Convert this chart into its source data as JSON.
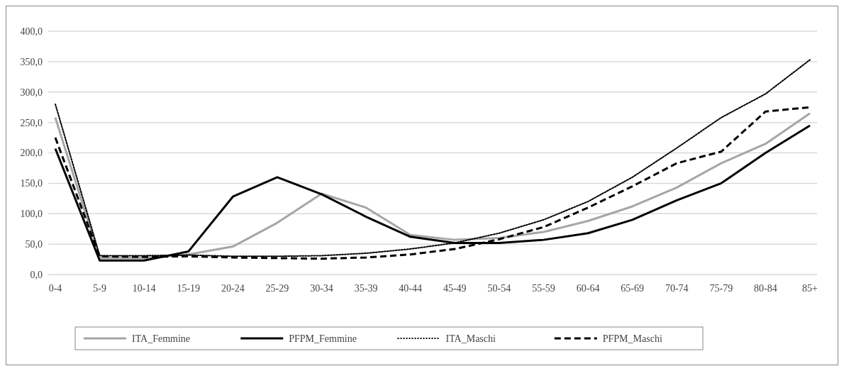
{
  "chart_data": {
    "type": "line",
    "categories": [
      "0-4",
      "5-9",
      "10-14",
      "15-19",
      "20-24",
      "25-29",
      "30-34",
      "35-39",
      "40-44",
      "45-49",
      "50-54",
      "55-59",
      "60-64",
      "65-69",
      "70-74",
      "75-79",
      "80-84",
      "85+"
    ],
    "series": [
      {
        "name": "ITA_Femmine",
        "color": "#a6a6a6",
        "line_style": "solid",
        "values": [
          258,
          27,
          27,
          33,
          46,
          85,
          133,
          110,
          65,
          57,
          60,
          70,
          88,
          112,
          143,
          183,
          215,
          265
        ]
      },
      {
        "name": "PFPM_Femmine",
        "color": "#000000",
        "line_style": "solid",
        "values": [
          207,
          23,
          23,
          38,
          128,
          160,
          132,
          95,
          62,
          52,
          52,
          57,
          68,
          90,
          122,
          150,
          200,
          245
        ]
      },
      {
        "name": "ITA_Maschi",
        "color": "#000000",
        "line_style": "dotted",
        "values": [
          280,
          31,
          31,
          32,
          30,
          30,
          31,
          35,
          42,
          52,
          68,
          90,
          120,
          160,
          208,
          258,
          297,
          353
        ]
      },
      {
        "name": "PFPM_Maschi",
        "color": "#000000",
        "line_style": "dashed",
        "values": [
          225,
          30,
          29,
          30,
          28,
          27,
          26,
          28,
          33,
          42,
          58,
          78,
          110,
          145,
          183,
          202,
          268,
          275
        ]
      }
    ],
    "ylim": [
      0,
      400
    ],
    "yticks": [
      {
        "value": 0,
        "label": "0,0"
      },
      {
        "value": 50,
        "label": "50,0"
      },
      {
        "value": 100,
        "label": "100,0"
      },
      {
        "value": 150,
        "label": "150,0"
      },
      {
        "value": 200,
        "label": "200,0"
      },
      {
        "value": 250,
        "label": "250,0"
      },
      {
        "value": 300,
        "label": "300,0"
      },
      {
        "value": 350,
        "label": "350,0"
      },
      {
        "value": 400,
        "label": "400,0"
      }
    ],
    "grid": "y",
    "legend": "bottom"
  }
}
